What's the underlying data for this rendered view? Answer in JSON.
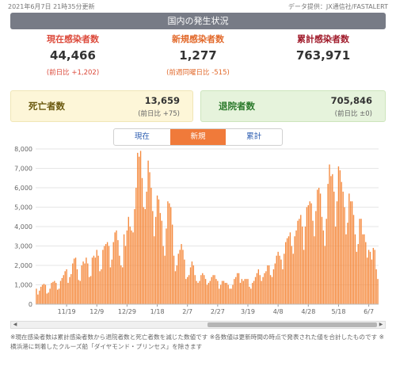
{
  "top": {
    "updated": "2021年6月7日 21時35分更新",
    "source": "データ提供：JX通信社/FASTALERT"
  },
  "header": {
    "title": "国内の発生状況"
  },
  "stats": {
    "current": {
      "label": "現在感染者数",
      "value": "44,466",
      "diff": "(前日比 +1,202)"
    },
    "new": {
      "label": "新規感染者数",
      "value": "1,277",
      "diff": "(前週同曜日比 -515)"
    },
    "cumulative": {
      "label": "累計感染者数",
      "value": "763,971"
    }
  },
  "deaths": {
    "label": "死亡者数",
    "value": "13,659",
    "diff": "(前日比 +75)"
  },
  "recovered": {
    "label": "退院者数",
    "value": "705,846",
    "diff": "(前日比 ±0)"
  },
  "tabs": [
    {
      "label": "現在",
      "active": false
    },
    {
      "label": "新規",
      "active": true
    },
    {
      "label": "累計",
      "active": false
    }
  ],
  "note": "※現在感染者数は累計感染者数から退院者数と死亡者数を減じた数値です ※各数値は更新時間の時点で発表された値を合計したものです ※横浜港に到着したクルーズ船「ダイヤモンド・プリンセス」を除きます",
  "colors": {
    "bar": "#f58a3e",
    "accent": "#f07a3a",
    "header": "#777b86"
  },
  "chart_data": {
    "type": "bar",
    "ylim": [
      0,
      8000
    ],
    "y_ticks": [
      "0",
      "1,000",
      "2,000",
      "3,000",
      "4,000",
      "5,000",
      "6,000",
      "7,000",
      "8,000"
    ],
    "x_tick_labels": [
      "11/19",
      "12/9",
      "12/29",
      "1/18",
      "2/7",
      "2/27",
      "3/19",
      "4/8",
      "4/28",
      "5/18",
      "6/7"
    ],
    "start_date": "10/30",
    "grid": true,
    "values": [
      800,
      500,
      700,
      900,
      1000,
      1050,
      1000,
      550,
      600,
      800,
      1100,
      1150,
      1200,
      1100,
      750,
      800,
      1200,
      1350,
      1500,
      1700,
      1800,
      1100,
      1400,
      1550,
      2100,
      2350,
      2400,
      1800,
      1250,
      1200,
      2000,
      2200,
      2100,
      2400,
      2100,
      1400,
      1450,
      2400,
      2500,
      2400,
      2800,
      2500,
      1700,
      1800,
      2800,
      3000,
      3100,
      3200,
      3000,
      1900,
      2300,
      3200,
      3700,
      3800,
      3300,
      2500,
      2000,
      1900,
      3600,
      3000,
      3800,
      4500,
      4000,
      3800,
      3700,
      4900,
      6000,
      7800,
      7600,
      7900,
      6500,
      5000,
      4900,
      5800,
      7400,
      6800,
      6000,
      4800,
      3500,
      4500,
      5600,
      5400,
      4700,
      4300,
      3000,
      2500,
      3900,
      5300,
      5200,
      5000,
      4100,
      2500,
      1700,
      2000,
      2600,
      2800,
      3100,
      2800,
      2300,
      1300,
      1400,
      1500,
      1900,
      2200,
      2000,
      1500,
      1200,
      1100,
      1200,
      1500,
      1600,
      1500,
      1300,
      1000,
      1100,
      1200,
      1400,
      1500,
      1500,
      1300,
      1200,
      800,
      1000,
      1200,
      1200,
      1100,
      1100,
      1000,
      800,
      800,
      1000,
      1300,
      1400,
      1600,
      1600,
      1100,
      1300,
      1200,
      1300,
      1300,
      1300,
      900,
      800,
      1100,
      1200,
      1400,
      1600,
      1800,
      1500,
      1200,
      1400,
      1600,
      1700,
      2000,
      2000,
      1500,
      1400,
      1800,
      2100,
      2500,
      2700,
      2500,
      2300,
      1800,
      2600,
      3200,
      3400,
      3500,
      3700,
      3000,
      2600,
      3500,
      3800,
      4300,
      4400,
      4600,
      4000,
      2800,
      4000,
      5000,
      5100,
      5300,
      5200,
      4300,
      3500,
      4800,
      5900,
      6000,
      5700,
      4500,
      3800,
      3000,
      4400,
      6200,
      7200,
      6600,
      6700,
      5800,
      4000,
      5300,
      7100,
      6900,
      6300,
      5800,
      5000,
      3600,
      4200,
      5700,
      5300,
      5300,
      4600,
      3600,
      2700,
      3100,
      4400,
      4400,
      3600,
      3600,
      3200,
      2400,
      2800,
      2700,
      2300,
      2900,
      2800,
      1800,
      1300
    ]
  }
}
